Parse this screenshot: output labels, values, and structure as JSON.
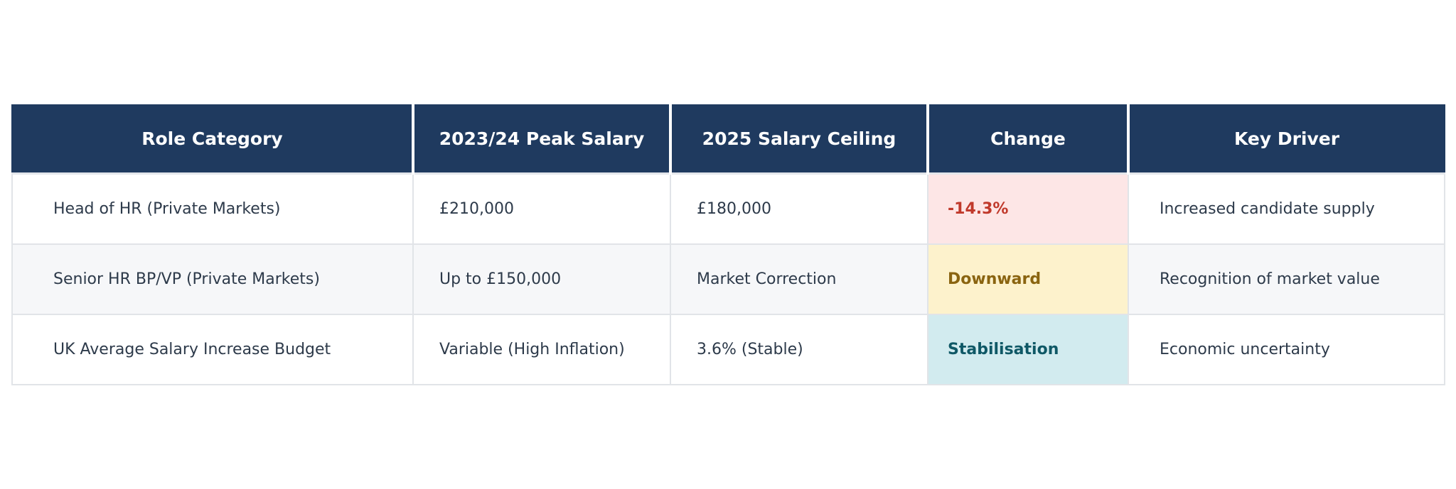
{
  "table": {
    "headers": [
      "Role Category",
      "2023/24 Peak Salary",
      "2025 Salary Ceiling",
      "Change",
      "Key Driver"
    ],
    "rows": [
      {
        "role": "Head of HR (Private Markets)",
        "peak": "£210,000",
        "ceiling": "£180,000",
        "change": "-14.3%",
        "driver": "Increased candidate supply"
      },
      {
        "role": "Senior HR BP/VP (Private Markets)",
        "peak": "Up to £150,000",
        "ceiling": "Market Correction",
        "change": "Downward",
        "driver": "Recognition of market value"
      },
      {
        "role": "UK Average Salary Increase Budget",
        "peak": "Variable (High Inflation)",
        "ceiling": "3.6% (Stable)",
        "change": "Stabilisation",
        "driver": "Economic uncertainty"
      }
    ]
  },
  "colors": {
    "header_bg": "#1f3a5f",
    "negative": "#c0392b",
    "downward": "#8a6410",
    "stabilisation": "#0f5866"
  }
}
